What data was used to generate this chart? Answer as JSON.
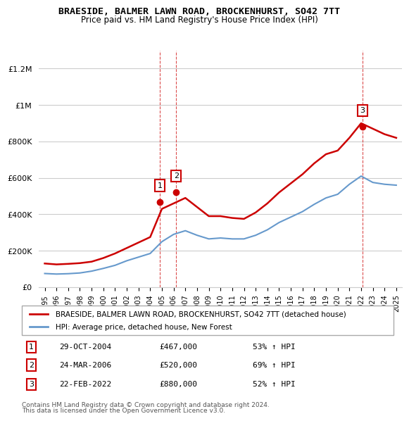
{
  "title": "BRAESIDE, BALMER LAWN ROAD, BROCKENHURST, SO42 7TT",
  "subtitle": "Price paid vs. HM Land Registry's House Price Index (HPI)",
  "legend_line1": "BRAESIDE, BALMER LAWN ROAD, BROCKENHURST, SO42 7TT (detached house)",
  "legend_line2": "HPI: Average price, detached house, New Forest",
  "footer1": "Contains HM Land Registry data © Crown copyright and database right 2024.",
  "footer2": "This data is licensed under the Open Government Licence v3.0.",
  "transactions": [
    {
      "num": 1,
      "date": "29-OCT-2004",
      "price": "£467,000",
      "pct": "53% ↑ HPI",
      "year": 2004.83
    },
    {
      "num": 2,
      "date": "24-MAR-2006",
      "price": "£520,000",
      "pct": "69% ↑ HPI",
      "year": 2006.22
    },
    {
      "num": 3,
      "date": "22-FEB-2022",
      "price": "£880,000",
      "pct": "52% ↑ HPI",
      "year": 2022.13
    }
  ],
  "red_line_color": "#cc0000",
  "blue_line_color": "#6699cc",
  "vline_color": "#cc0000",
  "vline_alpha": 0.4,
  "vline_color2": "#6699cc",
  "grid_color": "#cccccc",
  "background_color": "#ffffff",
  "xlim": [
    1994.5,
    2025.5
  ],
  "ylim": [
    0,
    1300000
  ],
  "years_x": [
    1995,
    1996,
    1997,
    1998,
    1999,
    2000,
    2001,
    2002,
    2003,
    2004,
    2005,
    2006,
    2007,
    2008,
    2009,
    2010,
    2011,
    2012,
    2013,
    2014,
    2015,
    2016,
    2017,
    2018,
    2019,
    2020,
    2021,
    2022,
    2023,
    2024,
    2025
  ],
  "red_y": [
    130000,
    125000,
    128000,
    132000,
    140000,
    160000,
    185000,
    215000,
    245000,
    275000,
    430000,
    460000,
    490000,
    440000,
    390000,
    390000,
    380000,
    375000,
    410000,
    460000,
    520000,
    570000,
    620000,
    680000,
    730000,
    750000,
    820000,
    900000,
    870000,
    840000,
    820000
  ],
  "blue_y": [
    75000,
    72000,
    74000,
    78000,
    88000,
    103000,
    120000,
    145000,
    165000,
    185000,
    250000,
    290000,
    310000,
    285000,
    265000,
    270000,
    265000,
    265000,
    285000,
    315000,
    355000,
    385000,
    415000,
    455000,
    490000,
    510000,
    565000,
    610000,
    575000,
    565000,
    560000
  ]
}
